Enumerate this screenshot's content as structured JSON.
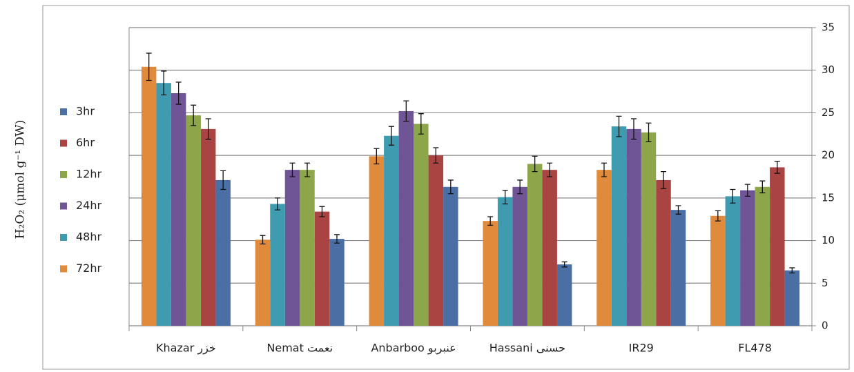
{
  "chart_data": {
    "type": "bar",
    "y_label": "H₂O₂ (μmol g⁻¹ DW)",
    "categories": [
      "Khazar خزر",
      "Nemat نعمت",
      "Anbarboo عنبربو",
      "Hassani حسنی",
      "IR29",
      "FL478"
    ],
    "series": [
      {
        "name": "3hr",
        "color": "#4a6fa5",
        "values": [
          17.1,
          10.2,
          16.3,
          7.2,
          13.6,
          6.5
        ],
        "errors": [
          1.1,
          0.5,
          0.8,
          0.3,
          0.5,
          0.3
        ]
      },
      {
        "name": "6hr",
        "color": "#a94442",
        "values": [
          23.1,
          13.4,
          20.0,
          18.3,
          17.1,
          18.6
        ],
        "errors": [
          1.2,
          0.6,
          0.9,
          0.8,
          1.0,
          0.7
        ]
      },
      {
        "name": "12hr",
        "color": "#8da64a",
        "values": [
          24.7,
          18.3,
          23.7,
          19.0,
          22.7,
          16.3
        ],
        "errors": [
          1.2,
          0.8,
          1.2,
          0.9,
          1.1,
          0.7
        ]
      },
      {
        "name": "24hr",
        "color": "#6f5596",
        "values": [
          27.3,
          18.3,
          25.2,
          16.3,
          23.1,
          15.9
        ],
        "errors": [
          1.3,
          0.8,
          1.2,
          0.8,
          1.2,
          0.7
        ]
      },
      {
        "name": "48hr",
        "color": "#3f9bb0",
        "values": [
          28.5,
          14.3,
          22.3,
          15.1,
          23.4,
          15.2
        ],
        "errors": [
          1.4,
          0.7,
          1.1,
          0.8,
          1.2,
          0.8
        ]
      },
      {
        "name": "72hr",
        "color": "#e08a3c",
        "values": [
          30.4,
          10.1,
          19.9,
          12.3,
          18.3,
          12.9
        ],
        "errors": [
          1.6,
          0.5,
          0.9,
          0.5,
          0.8,
          0.6
        ]
      }
    ],
    "ylim": [
      0,
      35
    ],
    "yticks": [
      0,
      5,
      10,
      15,
      20,
      25,
      30,
      35
    ],
    "grid": true,
    "y_axis_side": "right",
    "legend": "left"
  }
}
